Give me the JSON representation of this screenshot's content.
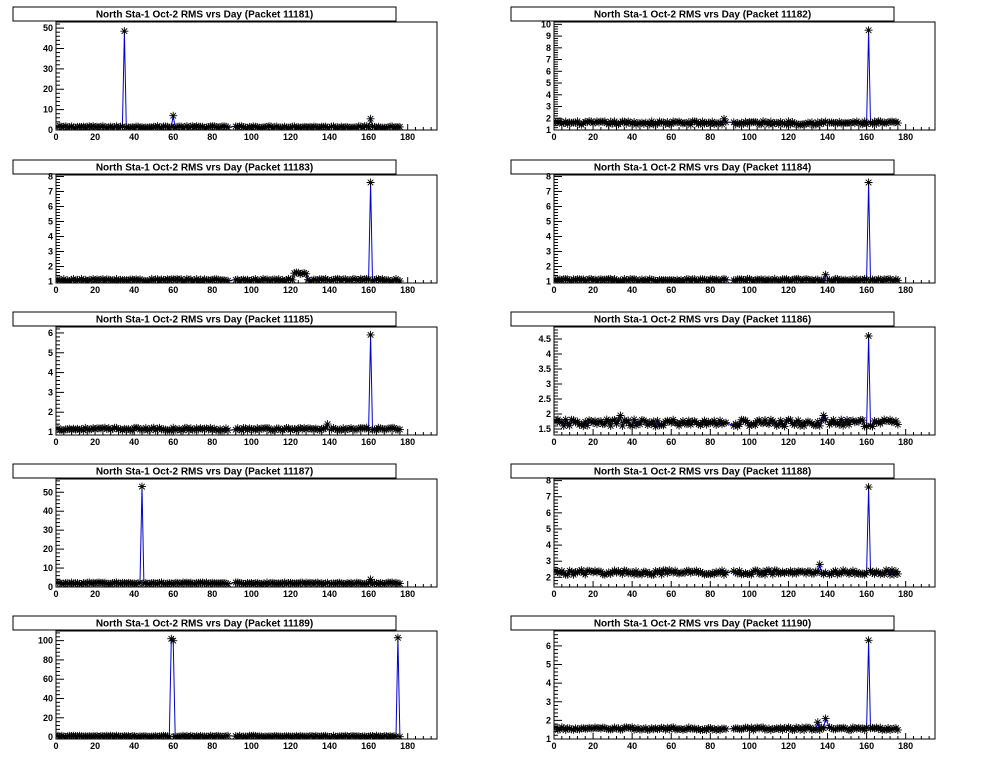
{
  "chart_data": [
    {
      "type": "line",
      "title": "North Sta-1 Oct-2 RMS vrs Day (Packet 11181)",
      "xlim": [
        0,
        195
      ],
      "ylim": [
        0,
        53
      ],
      "xticks": [
        0,
        20,
        40,
        60,
        80,
        100,
        120,
        140,
        160,
        180
      ],
      "yticks": [
        0,
        10,
        20,
        30,
        40,
        50
      ],
      "ydec": 0,
      "base": 1.5,
      "noise": 0.4,
      "gaps": [
        [
          88,
          92
        ],
        [
          139,
          141
        ]
      ],
      "spikes": [
        [
          35,
          48.5
        ],
        [
          60,
          7
        ],
        [
          161,
          5.5
        ]
      ],
      "bump": null,
      "line_color": "#0000cc",
      "marker_color": "#000000"
    },
    {
      "type": "line",
      "title": "North Sta-1 Oct-2 RMS vrs Day (Packet 11182)",
      "xlim": [
        0,
        195
      ],
      "ylim": [
        1,
        10.2
      ],
      "xticks": [
        0,
        20,
        40,
        60,
        80,
        100,
        120,
        140,
        160,
        180
      ],
      "yticks": [
        1,
        2,
        3,
        4,
        5,
        6,
        7,
        8,
        9,
        10
      ],
      "ydec": 0,
      "base": 1.6,
      "noise": 0.15,
      "gaps": [
        [
          88,
          92
        ],
        [
          139,
          141
        ]
      ],
      "spikes": [
        [
          161,
          9.5
        ],
        [
          87,
          1.95
        ]
      ],
      "bump": null,
      "line_color": "#0000cc",
      "marker_color": "#000000"
    },
    {
      "type": "line",
      "title": "North Sta-1 Oct-2 RMS vrs Day (Packet 11183)",
      "xlim": [
        0,
        195
      ],
      "ylim": [
        0.9,
        8.1
      ],
      "xticks": [
        0,
        20,
        40,
        60,
        80,
        100,
        120,
        140,
        160,
        180
      ],
      "yticks": [
        1,
        2,
        3,
        4,
        5,
        6,
        7,
        8
      ],
      "ydec": 0,
      "base": 1.1,
      "noise": 0.08,
      "gaps": [
        [
          88,
          92
        ],
        [
          139,
          141
        ]
      ],
      "spikes": [
        [
          161,
          7.6
        ]
      ],
      "bump": [
        122,
        128,
        1.55
      ],
      "line_color": "#0000cc",
      "marker_color": "#000000"
    },
    {
      "type": "line",
      "title": "North Sta-1 Oct-2 RMS vrs Day (Packet 11184)",
      "xlim": [
        0,
        195
      ],
      "ylim": [
        0.9,
        8.1
      ],
      "xticks": [
        0,
        20,
        40,
        60,
        80,
        100,
        120,
        140,
        160,
        180
      ],
      "yticks": [
        1,
        2,
        3,
        4,
        5,
        6,
        7,
        8
      ],
      "ydec": 0,
      "base": 1.1,
      "noise": 0.08,
      "gaps": [
        [
          88,
          92
        ],
        [
          139,
          141
        ]
      ],
      "spikes": [
        [
          161,
          7.6
        ],
        [
          139,
          1.45
        ]
      ],
      "bump": null,
      "line_color": "#0000cc",
      "marker_color": "#000000"
    },
    {
      "type": "line",
      "title": "North Sta-1 Oct-2 RMS vrs Day (Packet 11185)",
      "xlim": [
        0,
        195
      ],
      "ylim": [
        0.85,
        6.3
      ],
      "xticks": [
        0,
        20,
        40,
        60,
        80,
        100,
        120,
        140,
        160,
        180
      ],
      "yticks": [
        1,
        2,
        3,
        4,
        5,
        6
      ],
      "ydec": 0,
      "base": 1.15,
      "noise": 0.07,
      "gaps": [
        [
          88,
          92
        ],
        [
          139,
          141
        ]
      ],
      "spikes": [
        [
          161,
          5.9
        ],
        [
          139,
          1.4
        ]
      ],
      "bump": null,
      "line_color": "#0000cc",
      "marker_color": "#000000"
    },
    {
      "type": "line",
      "title": "North Sta-1 Oct-2 RMS vrs Day (Packet 11186)",
      "xlim": [
        0,
        195
      ],
      "ylim": [
        1.3,
        4.9
      ],
      "xticks": [
        0,
        20,
        40,
        60,
        80,
        100,
        120,
        140,
        160,
        180
      ],
      "yticks": [
        1.5,
        2,
        2.5,
        3,
        3.5,
        4,
        4.5
      ],
      "ydec": 1,
      "base": 1.7,
      "noise": 0.12,
      "gaps": [
        [
          88,
          92
        ],
        [
          139,
          141
        ]
      ],
      "spikes": [
        [
          161,
          4.6
        ],
        [
          34,
          1.95
        ],
        [
          138,
          1.95
        ]
      ],
      "bump": null,
      "line_color": "#0000cc",
      "marker_color": "#000000"
    },
    {
      "type": "line",
      "title": "North Sta-1 Oct-2 RMS vrs Day (Packet 11187)",
      "xlim": [
        0,
        195
      ],
      "ylim": [
        0,
        57
      ],
      "xticks": [
        0,
        20,
        40,
        60,
        80,
        100,
        120,
        140,
        160,
        180
      ],
      "yticks": [
        0,
        10,
        20,
        30,
        40,
        50
      ],
      "ydec": 0,
      "base": 2,
      "noise": 0.4,
      "gaps": [
        [
          88,
          92
        ],
        [
          139,
          141
        ]
      ],
      "spikes": [
        [
          44,
          53
        ],
        [
          161,
          4
        ]
      ],
      "bump": null,
      "line_color": "#0000cc",
      "marker_color": "#000000"
    },
    {
      "type": "line",
      "title": "North Sta-1 Oct-2 RMS vrs Day (Packet 11188)",
      "xlim": [
        0,
        195
      ],
      "ylim": [
        1.4,
        8.1
      ],
      "xticks": [
        0,
        20,
        40,
        60,
        80,
        100,
        120,
        140,
        160,
        180
      ],
      "yticks": [
        2,
        3,
        4,
        5,
        6,
        7,
        8
      ],
      "ydec": 0,
      "base": 2.3,
      "noise": 0.15,
      "gaps": [
        [
          88,
          92
        ],
        [
          139,
          141
        ]
      ],
      "spikes": [
        [
          161,
          7.6
        ],
        [
          136,
          2.8
        ]
      ],
      "bump": null,
      "line_color": "#0000cc",
      "marker_color": "#000000"
    },
    {
      "type": "line",
      "title": "North Sta-1 Oct-2 RMS vrs Day (Packet 11189)",
      "xlim": [
        0,
        195
      ],
      "ylim": [
        -2,
        110
      ],
      "xticks": [
        0,
        20,
        40,
        60,
        80,
        100,
        120,
        140,
        160,
        180
      ],
      "yticks": [
        0,
        20,
        40,
        60,
        80,
        100
      ],
      "ydec": 0,
      "base": 0.8,
      "noise": 0.6,
      "gaps": [
        [
          88,
          92
        ],
        [
          139,
          141
        ]
      ],
      "spikes": [
        [
          59,
          102
        ],
        [
          60,
          100
        ],
        [
          175,
          103
        ]
      ],
      "bump": null,
      "line_color": "#0000cc",
      "marker_color": "#000000"
    },
    {
      "type": "line",
      "title": "North Sta-1 Oct-2 RMS vrs Day (Packet 11190)",
      "xlim": [
        0,
        195
      ],
      "ylim": [
        1,
        6.8
      ],
      "xticks": [
        0,
        20,
        40,
        60,
        80,
        100,
        120,
        140,
        160,
        180
      ],
      "yticks": [
        1,
        2,
        3,
        4,
        5,
        6
      ],
      "ydec": 0,
      "base": 1.55,
      "noise": 0.08,
      "gaps": [
        [
          88,
          92
        ],
        [
          139,
          141
        ]
      ],
      "spikes": [
        [
          161,
          6.3
        ],
        [
          135,
          1.9
        ],
        [
          139,
          2.1
        ]
      ],
      "bump": null,
      "line_color": "#0000cc",
      "marker_color": "#000000"
    }
  ]
}
